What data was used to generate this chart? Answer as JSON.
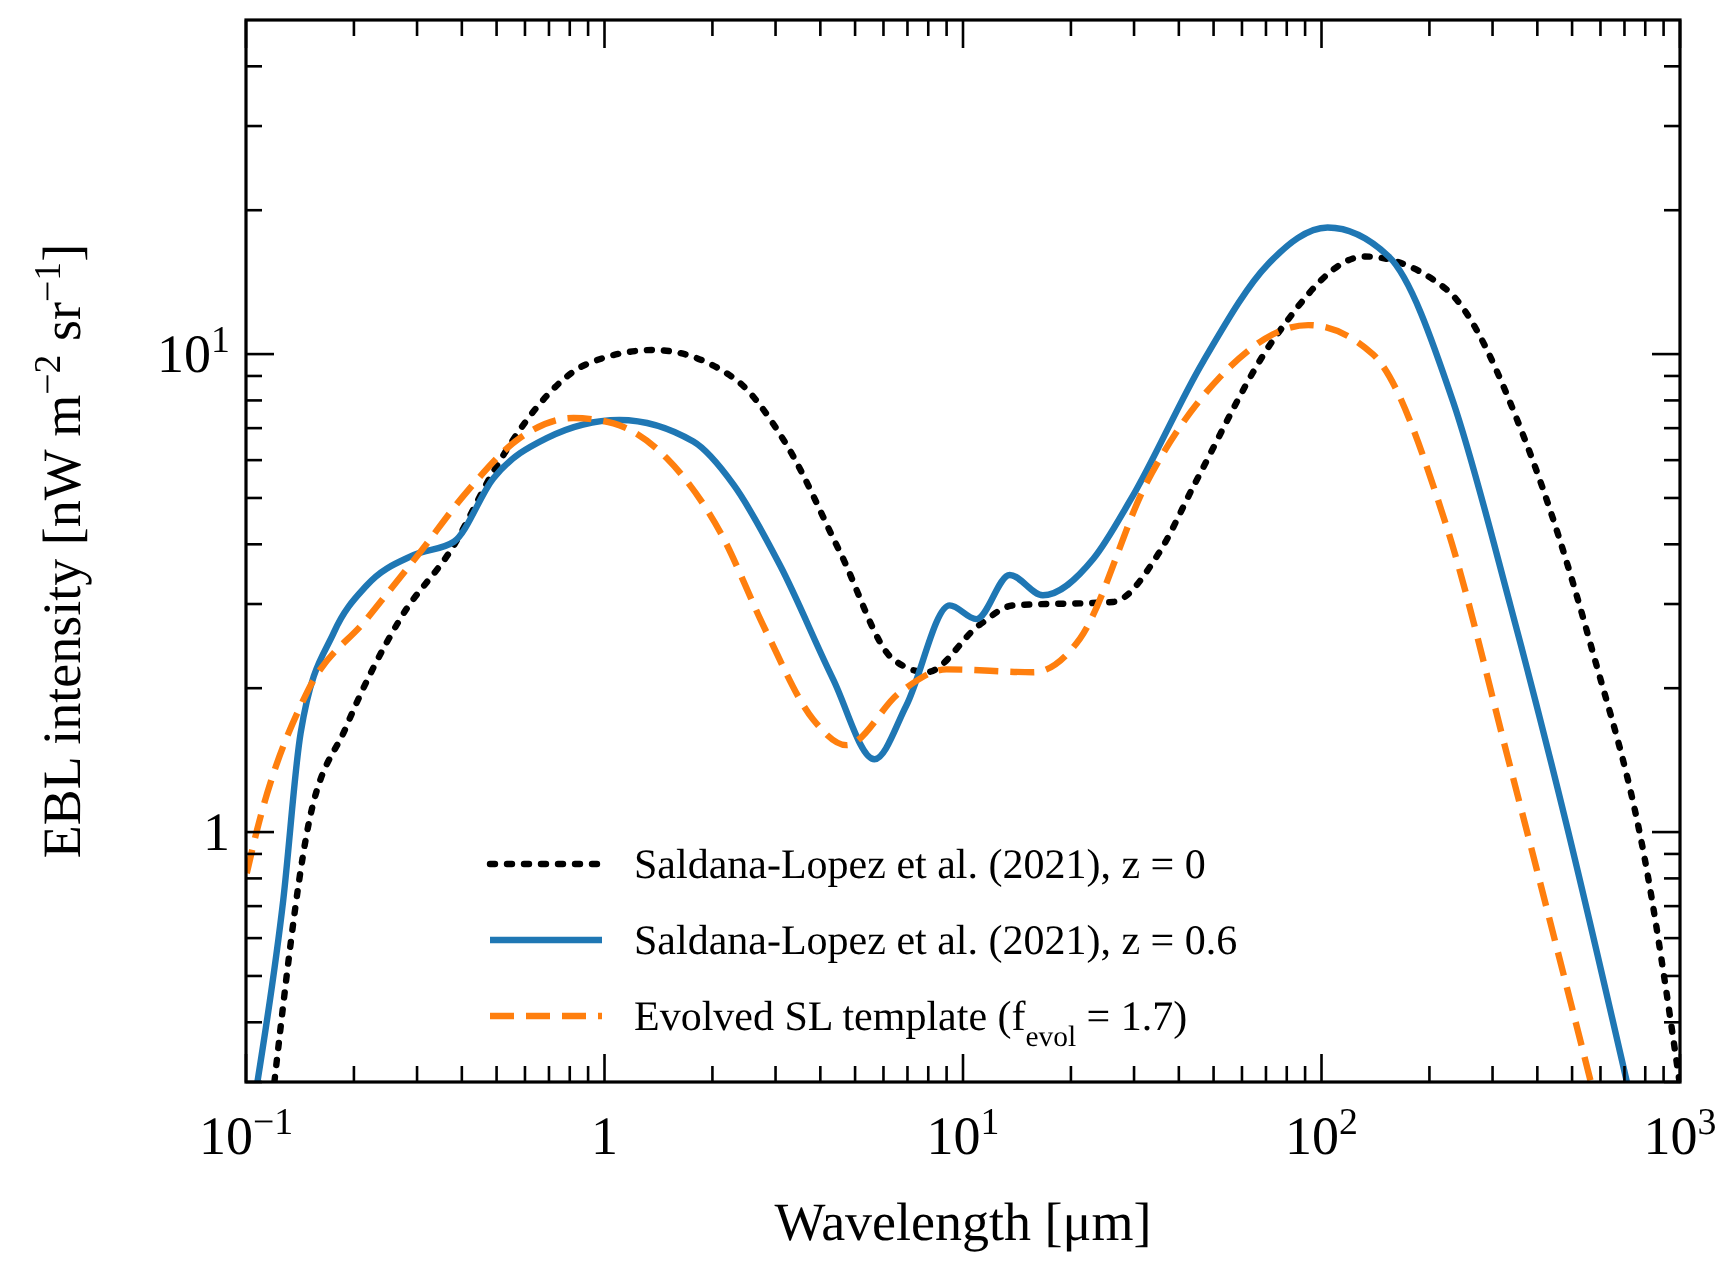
{
  "chart_data": {
    "type": "line",
    "xlabel": "Wavelength [μm]",
    "ylabel": "EBL intensity [nW m$^{−2}$ sr$^{−1}$]",
    "log": "xy",
    "grid": false,
    "legend": "bottom",
    "xlim": [
      0.1,
      1000
    ],
    "ylim": [
      0.3,
      50
    ],
    "xticks": [
      {
        "value": 0.1,
        "label": "10$^{−1}$"
      },
      {
        "value": 0.2,
        "label": null
      },
      {
        "value": 0.3,
        "label": null
      },
      {
        "value": 0.4,
        "label": null
      },
      {
        "value": 0.5,
        "label": null
      },
      {
        "value": 0.6,
        "label": null
      },
      {
        "value": 0.7,
        "label": null
      },
      {
        "value": 0.8,
        "label": null
      },
      {
        "value": 0.9,
        "label": null
      },
      1,
      {
        "value": 2,
        "label": null
      },
      {
        "value": 3,
        "label": null
      },
      {
        "value": 4,
        "label": null
      },
      {
        "value": 5,
        "label": null
      },
      {
        "value": 6,
        "label": null
      },
      {
        "value": 7,
        "label": null
      },
      {
        "value": 8,
        "label": null
      },
      {
        "value": 9,
        "label": null
      },
      {
        "value": 10,
        "label": "10$^{1}$"
      },
      {
        "value": 20,
        "label": null
      },
      {
        "value": 30,
        "label": null
      },
      {
        "value": 40,
        "label": null
      },
      {
        "value": 50,
        "label": null
      },
      {
        "value": 60,
        "label": null
      },
      {
        "value": 70,
        "label": null
      },
      {
        "value": 80,
        "label": null
      },
      {
        "value": 90,
        "label": null
      },
      {
        "value": 100,
        "label": "10$^{2}$"
      },
      {
        "value": 200,
        "label": null
      },
      {
        "value": 300,
        "label": null
      },
      {
        "value": 400,
        "label": null
      },
      {
        "value": 500,
        "label": null
      },
      {
        "value": 600,
        "label": null
      },
      {
        "value": 700,
        "label": null
      },
      {
        "value": 800,
        "label": null
      },
      {
        "value": 900,
        "label": null
      },
      {
        "value": 1000,
        "label": "10$^{3}$"
      }
    ],
    "yticks": [
      {
        "value": 0.3,
        "label": null
      },
      {
        "value": 0.4,
        "label": null
      },
      {
        "value": 0.5,
        "label": null
      },
      {
        "value": 0.6,
        "label": null
      },
      {
        "value": 0.7,
        "label": null
      },
      {
        "value": 0.8,
        "label": null
      },
      {
        "value": 0.9,
        "label": null
      },
      1,
      {
        "value": 2,
        "label": null
      },
      {
        "value": 3,
        "label": null
      },
      {
        "value": 4,
        "label": null
      },
      {
        "value": 5,
        "label": null
      },
      {
        "value": 6,
        "label": null
      },
      {
        "value": 7,
        "label": null
      },
      {
        "value": 8,
        "label": null
      },
      {
        "value": 9,
        "label": null
      },
      {
        "value": 10,
        "label": "10$^{1}$"
      },
      {
        "value": 20,
        "label": null
      },
      {
        "value": 30,
        "label": null
      },
      {
        "value": 40,
        "label": null
      }
    ],
    "series": [
      {
        "name": "Saldana-Lopez et al. (2021), z = 0",
        "color": "#000000",
        "line_style": "dotted",
        "x": [
          0.12,
          0.148,
          0.191,
          0.269,
          0.38,
          0.49,
          0.634,
          0.89,
          1.37,
          2.29,
          3.22,
          4.54,
          6.38,
          7.91,
          11.1,
          13.8,
          26.2,
          35.3,
          44.4,
          74.6,
          132,
          222,
          372,
          564,
          811,
          997
        ],
        "values": [
          0.3,
          1.0,
          1.67,
          2.79,
          3.98,
          5.68,
          7.59,
          9.52,
          10.2,
          8.92,
          6.46,
          3.85,
          2.3,
          2.16,
          2.71,
          2.98,
          3.03,
          3.85,
          5.37,
          10.9,
          16.0,
          13.7,
          6.53,
          2.46,
          0.82,
          0.3
        ]
      },
      {
        "name": "Saldana-Lopez et al. (2021), z = 0.6",
        "color": "#1f77b4",
        "line_style": "solid",
        "x": [
          0.1076,
          0.127,
          0.142,
          0.176,
          0.217,
          0.294,
          0.38,
          0.49,
          0.69,
          1.1,
          1.77,
          2.29,
          3.09,
          4.34,
          5.66,
          6.95,
          9.18,
          10.9,
          13.5,
          16.7,
          23.1,
          29.4,
          46.8,
          70.8,
          104,
          154,
          233,
          336,
          482,
          711
        ],
        "values": [
          0.3,
          0.72,
          1.61,
          2.62,
          3.28,
          3.8,
          4.05,
          5.5,
          6.67,
          7.28,
          6.56,
          5.33,
          3.61,
          2.09,
          1.42,
          1.84,
          2.98,
          2.79,
          3.45,
          3.13,
          3.73,
          4.97,
          9.66,
          15.4,
          18.4,
          16.0,
          7.94,
          2.99,
          1.04,
          0.3
        ]
      },
      {
        "name": "Evolved SL template (f$_{evol}$ = 1.7)",
        "color": "#ff7f0e",
        "line_style": "dashed",
        "x": [
          0.1005,
          0.107,
          0.148,
          0.217,
          0.306,
          0.413,
          0.58,
          0.82,
          1.06,
          1.49,
          2.1,
          2.83,
          3.82,
          4.73,
          6.67,
          8.99,
          15.7,
          21.2,
          32.5,
          51.9,
          91.8,
          139,
          222,
          336,
          564
        ],
        "values": [
          0.82,
          1.0,
          1.96,
          2.79,
          3.85,
          5.15,
          6.67,
          7.35,
          7.16,
          6.06,
          4.25,
          2.62,
          1.72,
          1.52,
          1.96,
          2.19,
          2.16,
          2.54,
          5.37,
          8.93,
          11.5,
          10.0,
          4.42,
          1.37,
          0.3
        ]
      }
    ]
  }
}
